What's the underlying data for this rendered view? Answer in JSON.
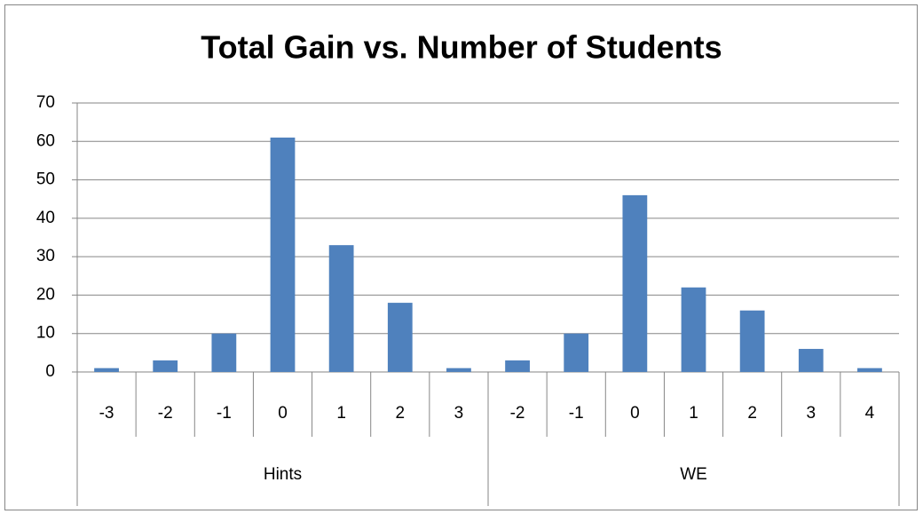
{
  "chart_data": {
    "type": "bar",
    "title": "Total Gain vs. Number of Students",
    "groups": [
      {
        "name": "Hints",
        "categories": [
          "-3",
          "-2",
          "-1",
          "0",
          "1",
          "2",
          "3"
        ],
        "values": [
          1,
          3,
          10,
          61,
          33,
          18,
          1
        ]
      },
      {
        "name": "WE",
        "categories": [
          "-2",
          "-1",
          "0",
          "1",
          "2",
          "3",
          "4"
        ],
        "values": [
          3,
          10,
          46,
          22,
          16,
          6,
          1
        ]
      }
    ],
    "color": "#4f81bd",
    "ylim": [
      0,
      70
    ],
    "yticks": [
      0,
      10,
      20,
      30,
      40,
      50,
      60,
      70
    ],
    "grid": true
  }
}
